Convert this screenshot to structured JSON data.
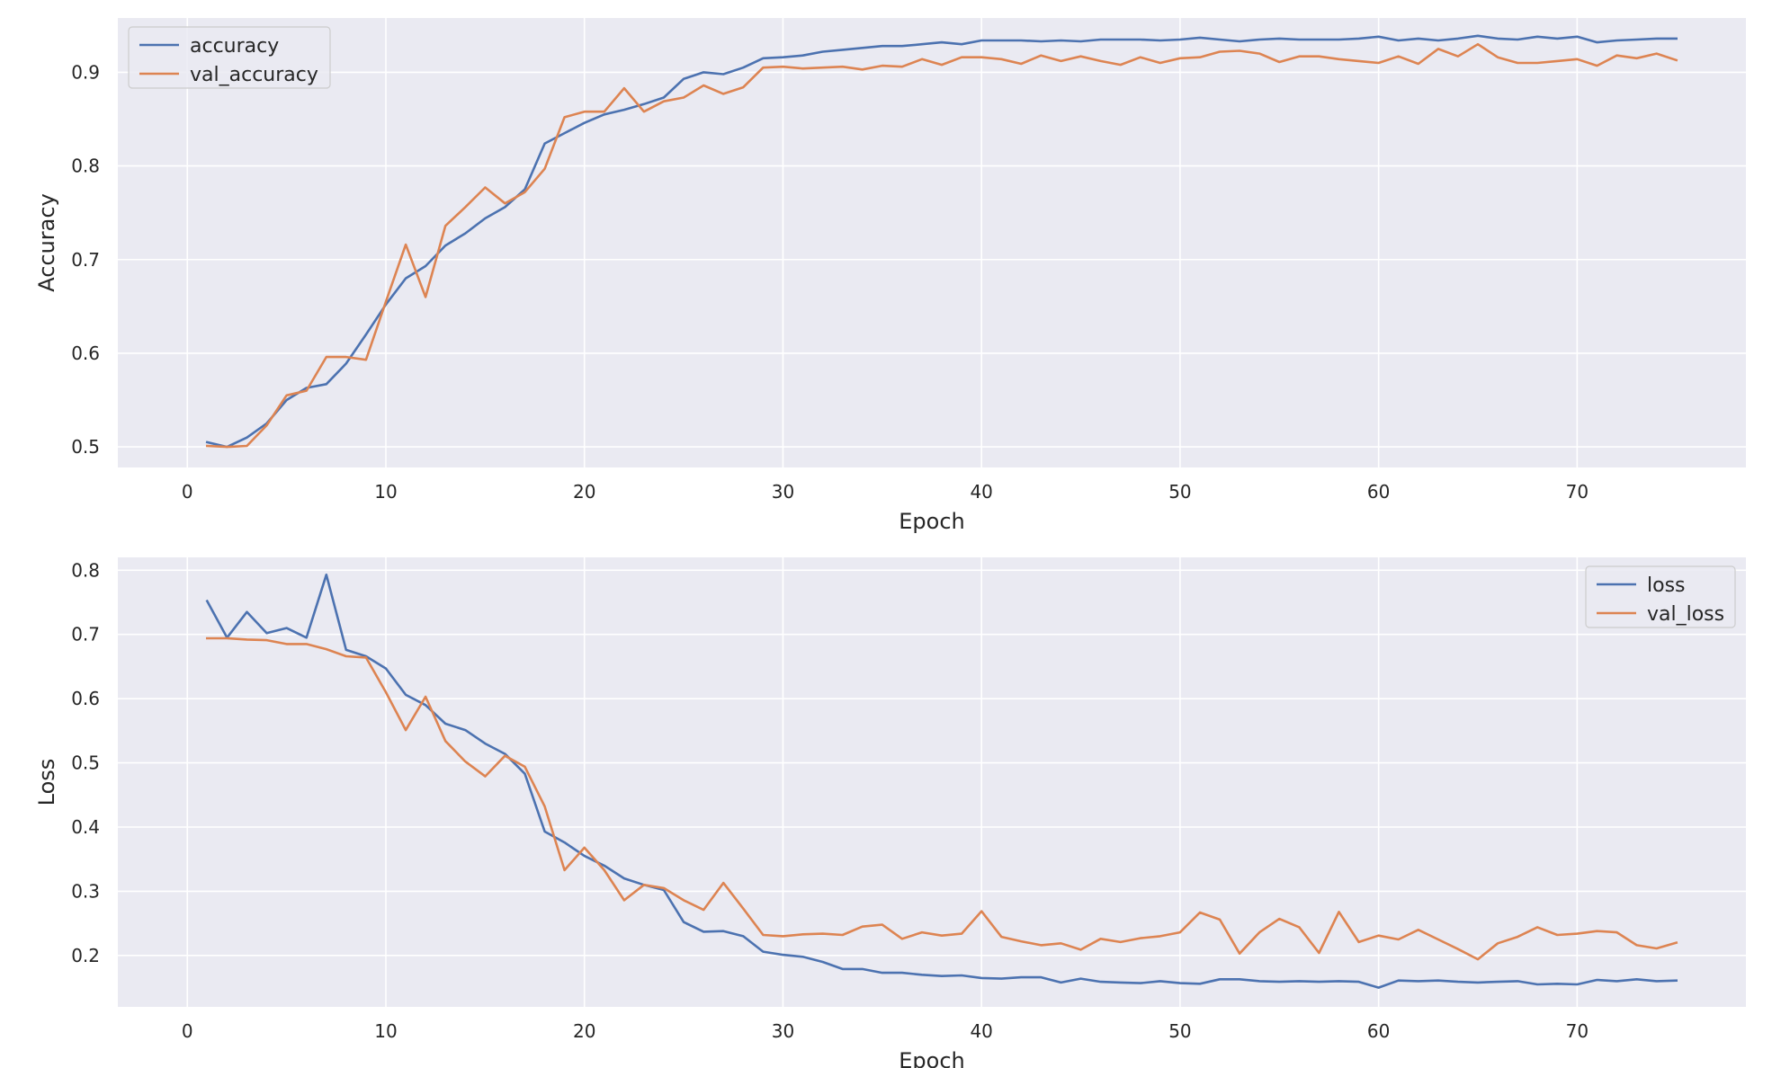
{
  "chart_data": [
    {
      "type": "line",
      "title": "",
      "xlabel": "Epoch",
      "ylabel": "Accuracy",
      "xlim": [
        -3.5,
        78.5
      ],
      "ylim": [
        0.478,
        0.958
      ],
      "xticks": [
        0,
        10,
        20,
        30,
        40,
        50,
        60,
        70
      ],
      "yticks": [
        0.5,
        0.6,
        0.7,
        0.8,
        0.9
      ],
      "grid": true,
      "legend": "top-left",
      "x": [
        1,
        2,
        3,
        4,
        5,
        6,
        7,
        8,
        9,
        10,
        11,
        12,
        13,
        14,
        15,
        16,
        17,
        18,
        19,
        20,
        21,
        22,
        23,
        24,
        25,
        26,
        27,
        28,
        29,
        30,
        31,
        32,
        33,
        34,
        35,
        36,
        37,
        38,
        39,
        40,
        41,
        42,
        43,
        44,
        45,
        46,
        47,
        48,
        49,
        50,
        51,
        52,
        53,
        54,
        55,
        56,
        57,
        58,
        59,
        60,
        61,
        62,
        63,
        64,
        65,
        66,
        67,
        68,
        69,
        70,
        71,
        72,
        73,
        74,
        75
      ],
      "series": [
        {
          "name": "accuracy",
          "color": "#4c72b0",
          "values": [
            0.505,
            0.5,
            0.51,
            0.525,
            0.55,
            0.563,
            0.567,
            0.589,
            0.62,
            0.652,
            0.68,
            0.693,
            0.715,
            0.728,
            0.744,
            0.756,
            0.775,
            0.824,
            0.835,
            0.846,
            0.855,
            0.86,
            0.866,
            0.873,
            0.893,
            0.9,
            0.898,
            0.905,
            0.915,
            0.916,
            0.918,
            0.922,
            0.924,
            0.926,
            0.928,
            0.928,
            0.93,
            0.932,
            0.93,
            0.934,
            0.934,
            0.934,
            0.933,
            0.934,
            0.933,
            0.935,
            0.935,
            0.935,
            0.934,
            0.935,
            0.937,
            0.935,
            0.933,
            0.935,
            0.936,
            0.935,
            0.935,
            0.935,
            0.936,
            0.938,
            0.934,
            0.936,
            0.934,
            0.936,
            0.939,
            0.936,
            0.935,
            0.938,
            0.936,
            0.938,
            0.932,
            0.934,
            0.935,
            0.936,
            0.936
          ]
        },
        {
          "name": "val_accuracy",
          "color": "#dd8452",
          "values": [
            0.501,
            0.5,
            0.501,
            0.523,
            0.555,
            0.56,
            0.596,
            0.596,
            0.593,
            0.655,
            0.716,
            0.66,
            0.736,
            0.756,
            0.777,
            0.76,
            0.772,
            0.797,
            0.852,
            0.858,
            0.858,
            0.883,
            0.858,
            0.869,
            0.873,
            0.886,
            0.877,
            0.884,
            0.905,
            0.906,
            0.904,
            0.905,
            0.906,
            0.903,
            0.907,
            0.906,
            0.914,
            0.908,
            0.916,
            0.916,
            0.914,
            0.909,
            0.918,
            0.912,
            0.917,
            0.912,
            0.908,
            0.916,
            0.91,
            0.915,
            0.916,
            0.922,
            0.923,
            0.92,
            0.911,
            0.917,
            0.917,
            0.914,
            0.912,
            0.91,
            0.917,
            0.909,
            0.925,
            0.917,
            0.93,
            0.916,
            0.91,
            0.91,
            0.912,
            0.914,
            0.907,
            0.918,
            0.915,
            0.92,
            0.913
          ]
        }
      ]
    },
    {
      "type": "line",
      "title": "",
      "xlabel": "Epoch",
      "ylabel": "Loss",
      "xlim": [
        -3.5,
        78.5
      ],
      "ylim": [
        0.12,
        0.82
      ],
      "xticks": [
        0,
        10,
        20,
        30,
        40,
        50,
        60,
        70
      ],
      "yticks": [
        0.2,
        0.3,
        0.4,
        0.5,
        0.6,
        0.7,
        0.8
      ],
      "grid": true,
      "legend": "top-right",
      "x": [
        1,
        2,
        3,
        4,
        5,
        6,
        7,
        8,
        9,
        10,
        11,
        12,
        13,
        14,
        15,
        16,
        17,
        18,
        19,
        20,
        21,
        22,
        23,
        24,
        25,
        26,
        27,
        28,
        29,
        30,
        31,
        32,
        33,
        34,
        35,
        36,
        37,
        38,
        39,
        40,
        41,
        42,
        43,
        44,
        45,
        46,
        47,
        48,
        49,
        50,
        51,
        52,
        53,
        54,
        55,
        56,
        57,
        58,
        59,
        60,
        61,
        62,
        63,
        64,
        65,
        66,
        67,
        68,
        69,
        70,
        71,
        72,
        73,
        74,
        75
      ],
      "series": [
        {
          "name": "loss",
          "color": "#4c72b0",
          "values": [
            0.752,
            0.695,
            0.735,
            0.702,
            0.71,
            0.695,
            0.793,
            0.676,
            0.666,
            0.647,
            0.606,
            0.59,
            0.561,
            0.551,
            0.53,
            0.514,
            0.483,
            0.393,
            0.376,
            0.355,
            0.34,
            0.32,
            0.31,
            0.302,
            0.252,
            0.237,
            0.238,
            0.23,
            0.206,
            0.201,
            0.198,
            0.19,
            0.179,
            0.179,
            0.173,
            0.173,
            0.17,
            0.168,
            0.169,
            0.165,
            0.164,
            0.166,
            0.166,
            0.158,
            0.164,
            0.159,
            0.158,
            0.157,
            0.16,
            0.157,
            0.156,
            0.163,
            0.163,
            0.16,
            0.159,
            0.16,
            0.159,
            0.16,
            0.159,
            0.15,
            0.161,
            0.16,
            0.161,
            0.159,
            0.158,
            0.159,
            0.16,
            0.155,
            0.156,
            0.155,
            0.162,
            0.16,
            0.163,
            0.16,
            0.161
          ]
        },
        {
          "name": "val_loss",
          "color": "#dd8452",
          "values": [
            0.694,
            0.694,
            0.692,
            0.691,
            0.685,
            0.685,
            0.677,
            0.666,
            0.664,
            0.61,
            0.551,
            0.603,
            0.534,
            0.502,
            0.479,
            0.511,
            0.494,
            0.432,
            0.333,
            0.368,
            0.333,
            0.286,
            0.31,
            0.305,
            0.286,
            0.271,
            0.313,
            0.273,
            0.232,
            0.23,
            0.233,
            0.234,
            0.232,
            0.245,
            0.248,
            0.226,
            0.236,
            0.231,
            0.234,
            0.269,
            0.229,
            0.222,
            0.216,
            0.219,
            0.209,
            0.226,
            0.221,
            0.227,
            0.23,
            0.236,
            0.267,
            0.256,
            0.203,
            0.236,
            0.257,
            0.244,
            0.204,
            0.268,
            0.221,
            0.231,
            0.225,
            0.24,
            0.225,
            0.21,
            0.194,
            0.219,
            0.229,
            0.244,
            0.232,
            0.234,
            0.238,
            0.236,
            0.216,
            0.211,
            0.22
          ]
        }
      ]
    }
  ]
}
